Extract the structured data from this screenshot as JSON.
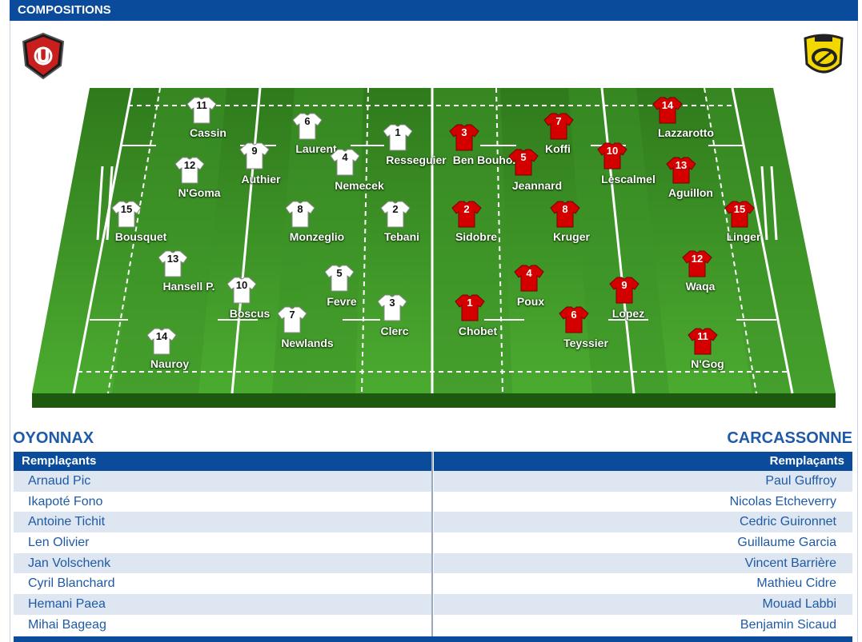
{
  "header": {
    "title": "COMPOSITIONS"
  },
  "home": {
    "name": "OYONNAX",
    "subs_label": "Remplaçants",
    "subs": [
      "Arnaud Pic",
      "Ikapoté Fono",
      "Antoine Tichit",
      "Len Olivier",
      "Jan Volschenk",
      "Cyril Blanchard",
      "Hemani Paea",
      "Mihai Bageag"
    ],
    "players": [
      {
        "num": "11",
        "name": "Cassin"
      },
      {
        "num": "6",
        "name": "Laurent"
      },
      {
        "num": "1",
        "name": "Resseguier"
      },
      {
        "num": "9",
        "name": "Authier"
      },
      {
        "num": "12",
        "name": "N'Goma"
      },
      {
        "num": "4",
        "name": "Nemecek"
      },
      {
        "num": "15",
        "name": "Bousquet"
      },
      {
        "num": "8",
        "name": "Monzeglio"
      },
      {
        "num": "2",
        "name": "Tebani"
      },
      {
        "num": "13",
        "name": "Hansell P."
      },
      {
        "num": "10",
        "name": "Boscus"
      },
      {
        "num": "5",
        "name": "Fevre"
      },
      {
        "num": "7",
        "name": "Newlands"
      },
      {
        "num": "3",
        "name": "Clerc"
      },
      {
        "num": "14",
        "name": "Nauroy"
      }
    ]
  },
  "away": {
    "name": "CARCASSONNE",
    "subs_label": "Remplaçants",
    "subs": [
      "Paul Guffroy",
      "Nicolas Etcheverry",
      "Cedric Guironnet",
      "Guillaume Garcia",
      "Vincent Barrière",
      "Mathieu Cidre",
      "Mouad Labbi",
      "Benjamin Sicaud"
    ],
    "players": [
      {
        "num": "14",
        "name": "Lazzarotto"
      },
      {
        "num": "3",
        "name": "Ben Bouho."
      },
      {
        "num": "7",
        "name": "Koffi"
      },
      {
        "num": "5",
        "name": "Jeannard"
      },
      {
        "num": "10",
        "name": "Lescalmel"
      },
      {
        "num": "13",
        "name": "Aguillon"
      },
      {
        "num": "2",
        "name": "Sidobre"
      },
      {
        "num": "8",
        "name": "Kruger"
      },
      {
        "num": "15",
        "name": "Linger"
      },
      {
        "num": "12",
        "name": "Waqa"
      },
      {
        "num": "4",
        "name": "Poux"
      },
      {
        "num": "1",
        "name": "Chobet"
      },
      {
        "num": "9",
        "name": "Lopez"
      },
      {
        "num": "6",
        "name": "Teyssier"
      },
      {
        "num": "11",
        "name": "N'Gog"
      }
    ]
  },
  "colors": {
    "header_bg": "#0a4b9c",
    "home_jersey": "#ffffff",
    "away_jersey": "#d40000",
    "field": "#3f9a2a"
  }
}
